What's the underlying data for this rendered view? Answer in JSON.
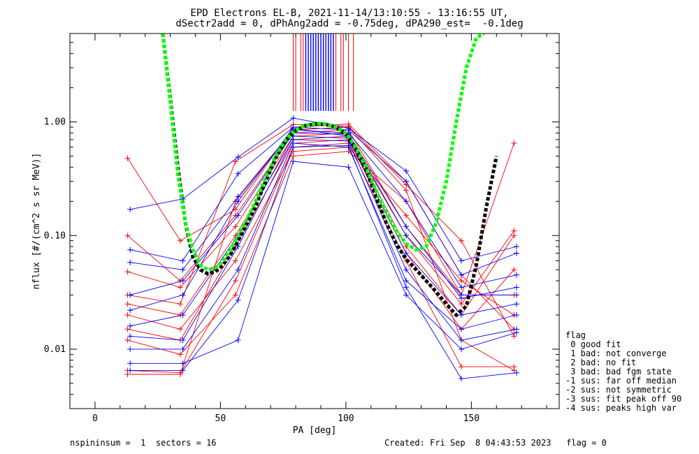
{
  "chart_data": {
    "type": "scatter",
    "title_line1": "EPD Electrons EL-B, 2021-11-14/13:10:55 - 13:16:55 UT,",
    "title_line2": "dSectr2add = 0, dPhAng2add = -0.75deg, dPA290_est=  -0.1deg",
    "xlabel": "PA [deg]",
    "ylabel": "nflux [#/(cm^2 s sr MeV)]",
    "xlim": [
      -10,
      185
    ],
    "ylim": [
      0.003,
      6
    ],
    "y_scale": "log",
    "x_ticks": [
      0,
      50,
      100,
      150
    ],
    "x_ticklabels": [
      "0",
      "50",
      "100",
      "150"
    ],
    "y_ticks": [
      0.01,
      0.1,
      1.0
    ],
    "y_ticklabels": [
      "0.01",
      "0.10",
      "1.00"
    ],
    "series": [
      {
        "color": "#ff0000",
        "x": [
          13,
          34,
          56,
          79,
          101,
          124,
          146,
          167
        ],
        "y": [
          0.48,
          0.09,
          0.17,
          0.9,
          0.96,
          0.3,
          0.045,
          0.015
        ]
      },
      {
        "color": "#ff0000",
        "x": [
          13,
          34,
          56,
          79,
          101,
          124,
          146,
          167
        ],
        "y": [
          0.006,
          0.006,
          0.2,
          0.85,
          0.9,
          0.25,
          0.012,
          0.0065
        ]
      },
      {
        "color": "#ff0000",
        "x": [
          13,
          34,
          56,
          79,
          101,
          124,
          146,
          167
        ],
        "y": [
          0.1,
          0.04,
          0.15,
          0.8,
          0.85,
          0.12,
          0.03,
          0.65
        ]
      },
      {
        "color": "#ff0000",
        "x": [
          13,
          34,
          56,
          79,
          101,
          124,
          146,
          167
        ],
        "y": [
          0.048,
          0.035,
          0.12,
          0.75,
          0.8,
          0.1,
          0.025,
          0.11
        ]
      },
      {
        "color": "#ff0000",
        "x": [
          13,
          34,
          56,
          79,
          101,
          124,
          146,
          167
        ],
        "y": [
          0.025,
          0.02,
          0.1,
          0.7,
          0.75,
          0.08,
          0.02,
          0.1
        ]
      },
      {
        "color": "#ff0000",
        "x": [
          13,
          34,
          56,
          79,
          101,
          124,
          146,
          167
        ],
        "y": [
          0.015,
          0.012,
          0.08,
          0.65,
          0.7,
          0.07,
          0.015,
          0.05
        ]
      },
      {
        "color": "#ff0000",
        "x": [
          13,
          34,
          56,
          79,
          101,
          124,
          146,
          167
        ],
        "y": [
          0.0065,
          0.0062,
          0.04,
          0.6,
          0.65,
          0.06,
          0.007,
          0.007
        ]
      },
      {
        "color": "#ff0000",
        "x": [
          13,
          34,
          56,
          79,
          101,
          124,
          146,
          167
        ],
        "y": [
          0.03,
          0.025,
          0.45,
          0.95,
          0.92,
          0.28,
          0.09,
          0.013
        ]
      },
      {
        "color": "#ff0000",
        "x": [
          13,
          34,
          56,
          79,
          101,
          124,
          146,
          167
        ],
        "y": [
          0.02,
          0.015,
          0.06,
          0.55,
          0.6,
          0.15,
          0.04,
          0.02
        ]
      },
      {
        "color": "#ff0000",
        "x": [
          13,
          34,
          56,
          79,
          101,
          124,
          146,
          167
        ],
        "y": [
          0.012,
          0.009,
          0.03,
          0.5,
          0.55,
          0.2,
          0.03,
          0.03
        ]
      },
      {
        "color": "#0000ff",
        "x": [
          14,
          35,
          57,
          79,
          101,
          124,
          146,
          168
        ],
        "y": [
          0.17,
          0.21,
          0.49,
          1.08,
          0.88,
          0.37,
          0.06,
          0.08
        ]
      },
      {
        "color": "#0000ff",
        "x": [
          14,
          35,
          57,
          79,
          101,
          124,
          146,
          168
        ],
        "y": [
          0.075,
          0.06,
          0.35,
          0.9,
          0.85,
          0.3,
          0.045,
          0.07
        ]
      },
      {
        "color": "#0000ff",
        "x": [
          14,
          35,
          57,
          79,
          101,
          124,
          146,
          168
        ],
        "y": [
          0.058,
          0.05,
          0.22,
          0.85,
          0.8,
          0.2,
          0.035,
          0.045
        ]
      },
      {
        "color": "#0000ff",
        "x": [
          14,
          35,
          57,
          79,
          101,
          124,
          146,
          168
        ],
        "y": [
          0.03,
          0.04,
          0.15,
          0.8,
          0.78,
          0.12,
          0.028,
          0.035
        ]
      },
      {
        "color": "#0000ff",
        "x": [
          14,
          35,
          57,
          79,
          101,
          124,
          146,
          168
        ],
        "y": [
          0.016,
          0.02,
          0.1,
          0.75,
          0.72,
          0.07,
          0.02,
          0.025
        ]
      },
      {
        "color": "#0000ff",
        "x": [
          14,
          35,
          57,
          79,
          101,
          124,
          146,
          168
        ],
        "y": [
          0.013,
          0.012,
          0.08,
          0.7,
          0.68,
          0.05,
          0.012,
          0.015
        ]
      },
      {
        "color": "#0000ff",
        "x": [
          14,
          35,
          57,
          79,
          101,
          124,
          146,
          168
        ],
        "y": [
          0.0065,
          0.0065,
          0.027,
          0.6,
          0.62,
          0.035,
          0.0055,
          0.0062
        ]
      },
      {
        "color": "#0000ff",
        "x": [
          14,
          35,
          57,
          79,
          101,
          124,
          146,
          168
        ],
        "y": [
          0.0075,
          0.0075,
          0.012,
          0.45,
          0.4,
          0.03,
          0.01,
          0.014
        ]
      },
      {
        "color": "#0000ff",
        "x": [
          14,
          35,
          57,
          79,
          101,
          124,
          146,
          168
        ],
        "y": [
          0.01,
          0.01,
          0.05,
          0.65,
          0.6,
          0.04,
          0.015,
          0.02
        ]
      },
      {
        "color": "#0000ff",
        "x": [
          14,
          35,
          57,
          79,
          101,
          124,
          146,
          168
        ],
        "y": [
          0.022,
          0.03,
          0.2,
          0.88,
          0.75,
          0.1,
          0.03,
          0.03
        ]
      }
    ],
    "fit_green": {
      "color": "#00ff00",
      "x": [
        27,
        30,
        33,
        36,
        39,
        42,
        45,
        48,
        51,
        54,
        57,
        60,
        64,
        68,
        72,
        76,
        80,
        84,
        88,
        92,
        96,
        100,
        104,
        108,
        112,
        116,
        120,
        124,
        128,
        132,
        136,
        140,
        144,
        148,
        152,
        155
      ],
      "y": [
        6,
        1.5,
        0.35,
        0.13,
        0.075,
        0.055,
        0.05,
        0.052,
        0.06,
        0.075,
        0.1,
        0.13,
        0.2,
        0.32,
        0.5,
        0.7,
        0.85,
        0.93,
        0.97,
        0.96,
        0.9,
        0.8,
        0.6,
        0.4,
        0.25,
        0.16,
        0.11,
        0.085,
        0.075,
        0.08,
        0.13,
        0.3,
        1.0,
        3.0,
        5.5,
        6
      ]
    },
    "fit_black": {
      "color": "#000000",
      "x": [
        27,
        30,
        33,
        36,
        39,
        42,
        45,
        48,
        51,
        54,
        57,
        60,
        64,
        68,
        72,
        76,
        80,
        84,
        88,
        92,
        96,
        100,
        104,
        108,
        112,
        116,
        120,
        124,
        128,
        132,
        136,
        140,
        144,
        148,
        152,
        156,
        160
      ],
      "y": [
        6,
        1.6,
        0.4,
        0.13,
        0.065,
        0.05,
        0.046,
        0.048,
        0.055,
        0.068,
        0.09,
        0.12,
        0.18,
        0.3,
        0.48,
        0.68,
        0.84,
        0.93,
        0.96,
        0.95,
        0.9,
        0.78,
        0.58,
        0.38,
        0.22,
        0.13,
        0.085,
        0.062,
        0.05,
        0.04,
        0.032,
        0.025,
        0.02,
        0.024,
        0.055,
        0.18,
        0.5
      ]
    },
    "vlines_red": [
      79,
      80,
      82,
      83,
      85,
      87,
      89,
      91,
      93,
      95,
      96,
      98,
      99,
      101,
      103
    ],
    "vlines_blue": [
      84,
      85,
      86,
      87,
      88,
      89,
      90,
      91,
      92,
      93,
      94,
      95
    ],
    "legend": [
      "flag",
      " 0 good fit",
      " 1 bad: not converge",
      " 2 bad: no fit",
      " 3 bad: bad fgm state",
      "-1 sus: far off median",
      "-2 sus: not symmetric",
      "-3 sus: fit peak off 90",
      "-4 sus: peaks high var"
    ],
    "legend_placement": "right"
  },
  "footer": {
    "left": "nspininsum =  1  sectors = 16",
    "right": "Created: Fri Sep  8 04:43:53 2023   flag = 0"
  }
}
